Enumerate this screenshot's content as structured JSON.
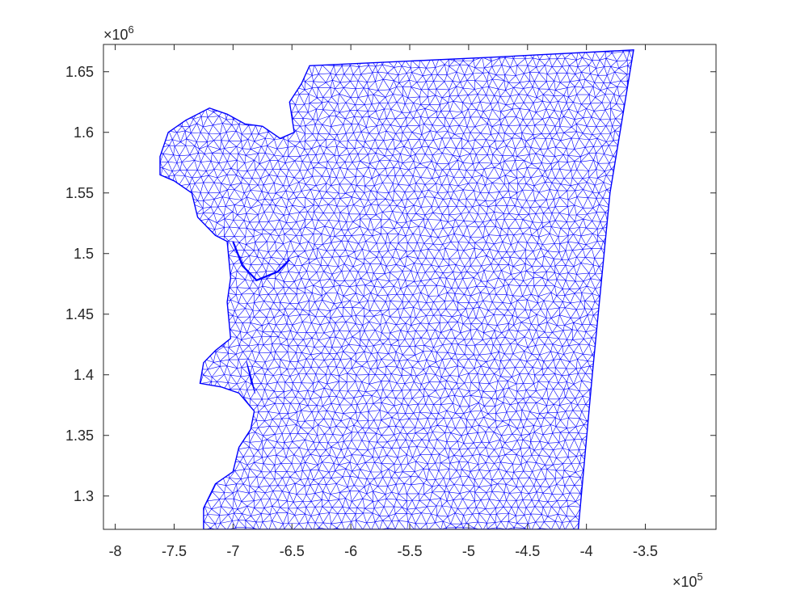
{
  "chart_data": {
    "type": "scatter",
    "title": "",
    "xlabel": "",
    "ylabel": "",
    "xlim": [
      -8.1,
      -2.9
    ],
    "ylim": [
      1.2725,
      1.6725
    ],
    "x_ticks": [
      -8,
      -7.5,
      -7,
      -6.5,
      -6,
      -5.5,
      -5,
      -4.5,
      -4,
      -3.5
    ],
    "x_tick_labels": [
      "-8",
      "-7.5",
      "-7",
      "-6.5",
      "-6",
      "-5.5",
      "-5",
      "-4.5",
      "-4",
      "-3.5"
    ],
    "y_ticks": [
      1.3,
      1.35,
      1.4,
      1.45,
      1.5,
      1.55,
      1.6,
      1.65
    ],
    "y_tick_labels": [
      "1.3",
      "1.35",
      "1.4",
      "1.45",
      "1.5",
      "1.55",
      "1.6",
      "1.65"
    ],
    "x_multiplier": {
      "base": "×10",
      "exponent": "5"
    },
    "y_multiplier": {
      "base": "×10",
      "exponent": "6"
    },
    "grid": false,
    "mesh_color": "#0000ff",
    "boundary": [
      [
        -6.35,
        1.655
      ],
      [
        -4.8,
        1.662
      ],
      [
        -3.6,
        1.668
      ],
      [
        -3.8,
        1.55
      ],
      [
        -3.95,
        1.4
      ],
      [
        -4.07,
        1.2725
      ],
      [
        -7.25,
        1.2725
      ],
      [
        -7.25,
        1.29
      ],
      [
        -7.15,
        1.31
      ],
      [
        -7.0,
        1.32
      ],
      [
        -6.95,
        1.34
      ],
      [
        -6.85,
        1.355
      ],
      [
        -6.82,
        1.37
      ],
      [
        -6.95,
        1.385
      ],
      [
        -7.1,
        1.39
      ],
      [
        -7.28,
        1.393
      ],
      [
        -7.25,
        1.41
      ],
      [
        -7.15,
        1.42
      ],
      [
        -7.02,
        1.43
      ],
      [
        -7.05,
        1.46
      ],
      [
        -7.02,
        1.48
      ],
      [
        -7.05,
        1.51
      ],
      [
        -7.15,
        1.515
      ],
      [
        -7.3,
        1.53
      ],
      [
        -7.35,
        1.55
      ],
      [
        -7.5,
        1.56
      ],
      [
        -7.62,
        1.565
      ],
      [
        -7.62,
        1.58
      ],
      [
        -7.55,
        1.6
      ],
      [
        -7.4,
        1.61
      ],
      [
        -7.2,
        1.62
      ],
      [
        -7.05,
        1.615
      ],
      [
        -6.9,
        1.607
      ],
      [
        -6.75,
        1.605
      ],
      [
        -6.6,
        1.595
      ],
      [
        -6.48,
        1.6
      ],
      [
        -6.52,
        1.625
      ],
      [
        -6.42,
        1.64
      ],
      [
        -6.35,
        1.655
      ]
    ],
    "inner_curve": [
      [
        -7.0,
        1.51
      ],
      [
        -6.92,
        1.49
      ],
      [
        -6.8,
        1.478
      ],
      [
        -6.62,
        1.485
      ],
      [
        -6.52,
        1.495
      ]
    ],
    "inner_ellipse": {
      "cx": -6.85,
      "cy": 1.398,
      "rx": 0.02,
      "ry": 0.012
    }
  }
}
